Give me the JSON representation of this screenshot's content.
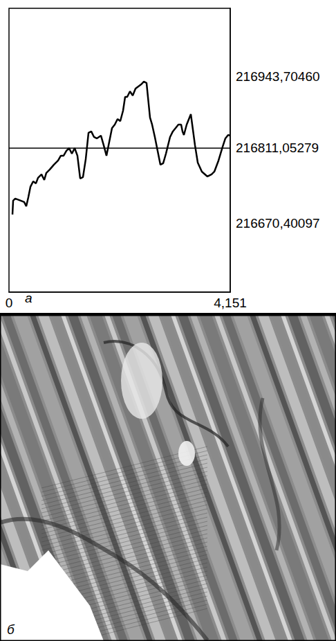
{
  "chart_data": {
    "type": "line",
    "color": "#000000",
    "grid": false,
    "panel_label": "а",
    "x": [
      0.065,
      0.078,
      0.117,
      0.221,
      0.285,
      0.324,
      0.363,
      0.402,
      0.454,
      0.506,
      0.545,
      0.61,
      0.662,
      0.7,
      0.765,
      0.843,
      0.921,
      0.973,
      1.025,
      1.077,
      1.128,
      1.18,
      1.232,
      1.284,
      1.336,
      1.388,
      1.44,
      1.492,
      1.544,
      1.596,
      1.647,
      1.725,
      1.777,
      1.829,
      1.881,
      1.933,
      1.985,
      2.037,
      2.088,
      2.14,
      2.179,
      2.218,
      2.27,
      2.322,
      2.374,
      2.426,
      2.478,
      2.53,
      2.581,
      2.607,
      2.646,
      2.685,
      2.737,
      2.789,
      2.841,
      2.893,
      2.945,
      3.022,
      3.074,
      3.126,
      3.178,
      3.23,
      3.256,
      3.282,
      3.334,
      3.386,
      3.412,
      3.438,
      3.49,
      3.542,
      3.619,
      3.723,
      3.801,
      3.853,
      3.931,
      4.009,
      4.06,
      4.112,
      4.151
    ],
    "values": [
      216687.1,
      216712.8,
      216716.6,
      216712.8,
      216710.2,
      216702.5,
      216719.2,
      216738.5,
      216748.7,
      216744.9,
      216755.2,
      216761.6,
      216751.3,
      216764.2,
      216770.6,
      216779.6,
      216787.3,
      216796.3,
      216796.3,
      216805.3,
      216810.4,
      216800.1,
      216810.4,
      216796.3,
      216753.9,
      216756.5,
      216789.9,
      216838.7,
      216841.3,
      216831.0,
      216828.4,
      216833.6,
      216815.6,
      216796.3,
      216822.0,
      216847.7,
      216854.1,
      216864.4,
      216860.5,
      216879.8,
      216905.5,
      216905.5,
      216915.8,
      216908.1,
      216920.9,
      216924.8,
      216928.6,
      216933.8,
      216931.2,
      216905.5,
      216867.0,
      216854.1,
      216831.0,
      216805.3,
      216779.6,
      216782.2,
      216800.1,
      216831.0,
      216841.3,
      216847.7,
      216854.1,
      216854.1,
      216841.3,
      216834.8,
      216854.1,
      216867.0,
      216873.4,
      216854.1,
      216815.6,
      216783.4,
      216766.7,
      216757.7,
      216761.6,
      216766.7,
      216787.3,
      216813.0,
      216828.4,
      216834.8,
      216833.6
    ],
    "xlim": [
      0,
      4.151
    ],
    "xticks": [
      0,
      {
        "value": 4.151,
        "label": "4,151"
      }
    ],
    "ylim": [
      216543,
      217070
    ],
    "yticks": [
      {
        "value": 216943.7046,
        "label": "216943,70460"
      },
      {
        "value": 216811.05279,
        "label": "216811,05279"
      },
      {
        "value": 216670.40097,
        "label": "216670,40097"
      }
    ]
  },
  "image": {
    "panel_label": "б"
  }
}
